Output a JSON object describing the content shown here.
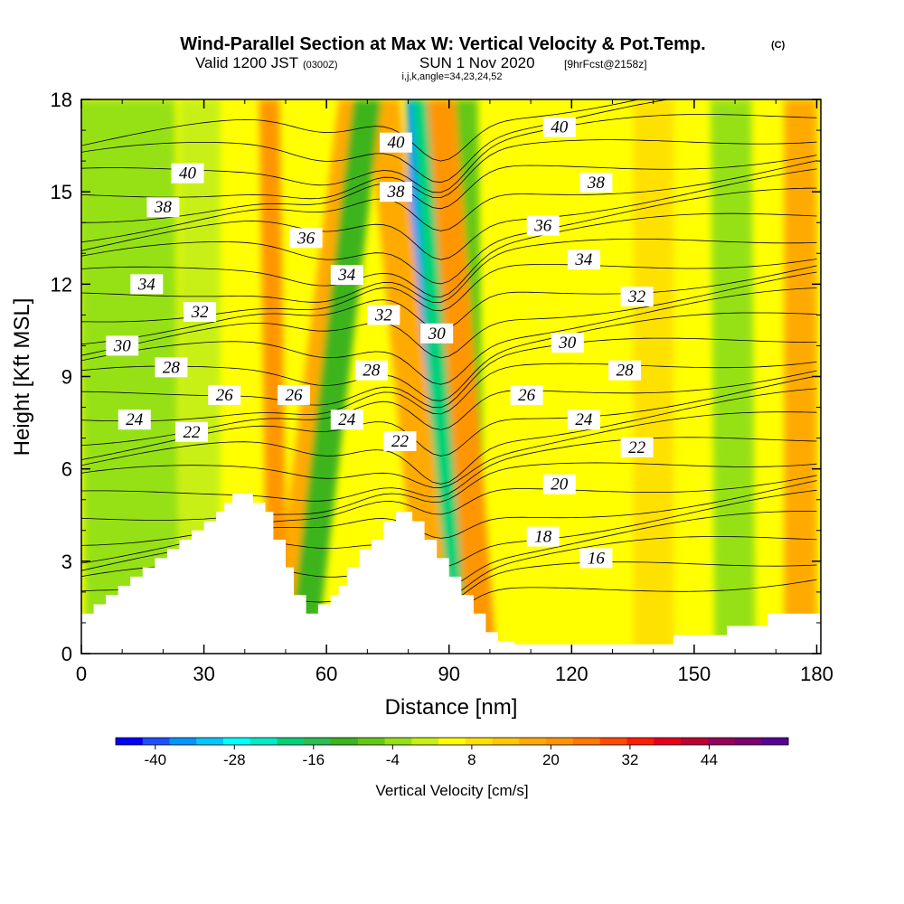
{
  "header": {
    "title": "Wind-Parallel Section at Max W: Vertical Velocity & Pot.Temp.",
    "copyright": "(C)",
    "valid_prefix": "Valid 1200 JST",
    "valid_utc": "(0300Z)",
    "valid_date": "SUN 1 Nov 2020",
    "forecast": "[9hrFcst@2158z]",
    "indices": "i,j,k,angle=34,23,24,52"
  },
  "chart_data": {
    "type": "heatmap",
    "xlabel": "Distance [nm]",
    "ylabel": "Height [Kft MSL]",
    "xlim": [
      0,
      181
    ],
    "ylim": [
      0,
      18
    ],
    "x_ticks": [
      0,
      30,
      60,
      90,
      120,
      150,
      180
    ],
    "y_ticks": [
      0,
      3,
      6,
      9,
      12,
      15,
      18
    ],
    "colorbar": {
      "label": "Vertical Velocity [cm/s]",
      "min": -46,
      "max": 56,
      "step": 4,
      "tick_values": [
        -40,
        -28,
        -16,
        -4,
        8,
        20,
        32,
        44
      ],
      "colors": [
        "#0000ff",
        "#1e50ff",
        "#0096ff",
        "#00c8ff",
        "#00ffff",
        "#00ebc8",
        "#00d278",
        "#28be50",
        "#3cb41e",
        "#64c814",
        "#96e114",
        "#c8f014",
        "#ffff00",
        "#ffe100",
        "#ffc800",
        "#ffaa00",
        "#ff9600",
        "#ff7800",
        "#ff4b00",
        "#ff1e00",
        "#e6001e",
        "#be0032",
        "#96005a",
        "#7d006e",
        "#5a0096"
      ]
    },
    "terrain_kft": [
      [
        0,
        1.3
      ],
      [
        3,
        1.3
      ],
      [
        3,
        1.6
      ],
      [
        6,
        1.6
      ],
      [
        6,
        1.9
      ],
      [
        9,
        1.9
      ],
      [
        9,
        2.2
      ],
      [
        12,
        2.2
      ],
      [
        12,
        2.5
      ],
      [
        15,
        2.5
      ],
      [
        15,
        2.8
      ],
      [
        18,
        2.8
      ],
      [
        18,
        3.1
      ],
      [
        21,
        3.1
      ],
      [
        21,
        3.4
      ],
      [
        24,
        3.4
      ],
      [
        24,
        3.7
      ],
      [
        27,
        3.7
      ],
      [
        27,
        4.0
      ],
      [
        30,
        4.0
      ],
      [
        30,
        4.3
      ],
      [
        33,
        4.3
      ],
      [
        33,
        4.6
      ],
      [
        35,
        4.6
      ],
      [
        35,
        4.9
      ],
      [
        37,
        4.9
      ],
      [
        37,
        5.2
      ],
      [
        42,
        5.2
      ],
      [
        42,
        4.9
      ],
      [
        45,
        4.9
      ],
      [
        45,
        4.6
      ],
      [
        47,
        4.6
      ],
      [
        47,
        3.7
      ],
      [
        50,
        3.7
      ],
      [
        50,
        2.8
      ],
      [
        52,
        2.8
      ],
      [
        52,
        1.9
      ],
      [
        55,
        1.9
      ],
      [
        55,
        1.3
      ],
      [
        58,
        1.3
      ],
      [
        58,
        1.6
      ],
      [
        61,
        1.6
      ],
      [
        61,
        1.9
      ],
      [
        63,
        1.9
      ],
      [
        63,
        2.2
      ],
      [
        65,
        2.2
      ],
      [
        65,
        2.8
      ],
      [
        68,
        2.8
      ],
      [
        68,
        3.4
      ],
      [
        71,
        3.4
      ],
      [
        71,
        3.7
      ],
      [
        74,
        3.7
      ],
      [
        74,
        4.3
      ],
      [
        77,
        4.3
      ],
      [
        77,
        4.6
      ],
      [
        81,
        4.6
      ],
      [
        81,
        4.3
      ],
      [
        84,
        4.3
      ],
      [
        84,
        3.7
      ],
      [
        87,
        3.7
      ],
      [
        87,
        3.1
      ],
      [
        90,
        3.1
      ],
      [
        90,
        2.5
      ],
      [
        93,
        2.5
      ],
      [
        93,
        1.9
      ],
      [
        96,
        1.9
      ],
      [
        96,
        1.3
      ],
      [
        99,
        1.3
      ],
      [
        99,
        0.7
      ],
      [
        102,
        0.7
      ],
      [
        102,
        0.4
      ],
      [
        106,
        0.4
      ],
      [
        106,
        0.3
      ],
      [
        145,
        0.3
      ],
      [
        145,
        0.6
      ],
      [
        158,
        0.6
      ],
      [
        158,
        0.9
      ],
      [
        168,
        0.9
      ],
      [
        168,
        1.3
      ],
      [
        181,
        1.3
      ]
    ],
    "contour_field": "Potential Temperature (labels in deg, shown without units)",
    "contour_labels": [
      {
        "text": "40",
        "x": 26,
        "y": 15.6
      },
      {
        "text": "38",
        "x": 20,
        "y": 14.5
      },
      {
        "text": "34",
        "x": 16,
        "y": 12.0
      },
      {
        "text": "32",
        "x": 29,
        "y": 11.1
      },
      {
        "text": "30",
        "x": 10,
        "y": 10.0
      },
      {
        "text": "28",
        "x": 22,
        "y": 9.3
      },
      {
        "text": "26",
        "x": 35,
        "y": 8.4
      },
      {
        "text": "24",
        "x": 13,
        "y": 7.6
      },
      {
        "text": "22",
        "x": 27,
        "y": 7.2
      },
      {
        "text": "36",
        "x": 55,
        "y": 13.5
      },
      {
        "text": "34",
        "x": 65,
        "y": 12.3
      },
      {
        "text": "26",
        "x": 52,
        "y": 8.4
      },
      {
        "text": "24",
        "x": 65,
        "y": 7.6
      },
      {
        "text": "28",
        "x": 71,
        "y": 9.2
      },
      {
        "text": "32",
        "x": 74,
        "y": 11.0
      },
      {
        "text": "40",
        "x": 77,
        "y": 16.6
      },
      {
        "text": "38",
        "x": 77,
        "y": 15.0
      },
      {
        "text": "22",
        "x": 78,
        "y": 6.9
      },
      {
        "text": "30",
        "x": 87,
        "y": 10.4
      },
      {
        "text": "40",
        "x": 117,
        "y": 17.1
      },
      {
        "text": "36",
        "x": 113,
        "y": 13.9
      },
      {
        "text": "38",
        "x": 126,
        "y": 15.3
      },
      {
        "text": "34",
        "x": 123,
        "y": 12.8
      },
      {
        "text": "32",
        "x": 136,
        "y": 11.6
      },
      {
        "text": "30",
        "x": 119,
        "y": 10.1
      },
      {
        "text": "28",
        "x": 133,
        "y": 9.2
      },
      {
        "text": "26",
        "x": 109,
        "y": 8.4
      },
      {
        "text": "24",
        "x": 123,
        "y": 7.6
      },
      {
        "text": "22",
        "x": 136,
        "y": 6.7
      },
      {
        "text": "20",
        "x": 117,
        "y": 5.5
      },
      {
        "text": "18",
        "x": 113,
        "y": 3.8
      },
      {
        "text": "16",
        "x": 126,
        "y": 3.1
      }
    ],
    "vertical_velocity_bands": [
      {
        "x_bottom": 86,
        "x_top": 82,
        "width": 2.5,
        "w": -36
      },
      {
        "x_bottom": 89,
        "x_top": 91,
        "width": 2.0,
        "w": 36
      },
      {
        "x_bottom": 92,
        "x_top": 84,
        "width": 3.0,
        "w": -20
      },
      {
        "x_bottom": 96,
        "x_top": 94,
        "width": 3.0,
        "w": -10
      },
      {
        "x_bottom": 98,
        "x_top": 88,
        "width": 3.5,
        "w": 18
      },
      {
        "x_bottom": 87,
        "x_top": 74,
        "width": 4.0,
        "w": 16
      },
      {
        "x_bottom": 50,
        "x_top": 67,
        "width": 4.0,
        "w": 14
      },
      {
        "x_bottom": 54,
        "x_top": 70,
        "width": 3.5,
        "w": -12
      },
      {
        "x_bottom": 48,
        "x_top": 46,
        "width": 2.5,
        "w": 18
      },
      {
        "x_bottom": 18,
        "x_top": 17,
        "width": 6,
        "w": -4
      },
      {
        "x_bottom": 8,
        "x_top": 6,
        "width": 7,
        "w": -6
      },
      {
        "x_bottom": 29,
        "x_top": 29,
        "width": 5,
        "w": -2
      },
      {
        "x_bottom": 120,
        "x_top": 120,
        "width": 6,
        "w": 2
      },
      {
        "x_bottom": 140,
        "x_top": 140,
        "width": 5,
        "w": 6
      },
      {
        "x_bottom": 160,
        "x_top": 159,
        "width": 5,
        "w": -6
      },
      {
        "x_bottom": 176,
        "x_top": 176,
        "width": 4,
        "w": 14
      }
    ]
  }
}
